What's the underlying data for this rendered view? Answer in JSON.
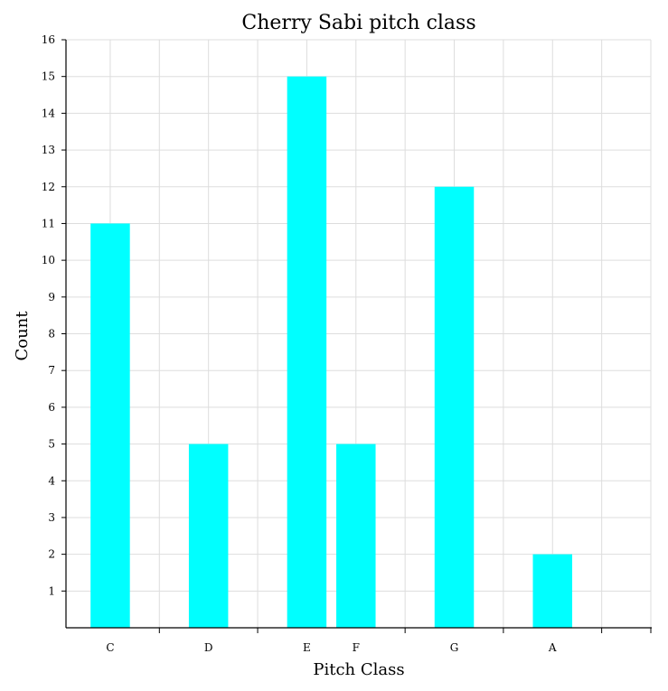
{
  "chart_data": {
    "type": "bar",
    "title": "Cherry Sabi pitch class",
    "xlabel": "Pitch Class",
    "ylabel": "Count",
    "categories": [
      "C",
      "D",
      "E",
      "F",
      "G",
      "A"
    ],
    "category_positions": [
      0,
      2,
      4,
      5,
      7,
      9
    ],
    "values": [
      11,
      5,
      15,
      5,
      12,
      2
    ],
    "xlim": [
      -0.9,
      11
    ],
    "ylim": [
      0,
      16
    ],
    "yticks": [
      1,
      2,
      3,
      4,
      5,
      6,
      7,
      8,
      9,
      10,
      11,
      12,
      13,
      14,
      15,
      16
    ],
    "grid": true,
    "bar_color": "#00ffff",
    "grid_color": "#dddddd",
    "axis_color": "#000000"
  }
}
